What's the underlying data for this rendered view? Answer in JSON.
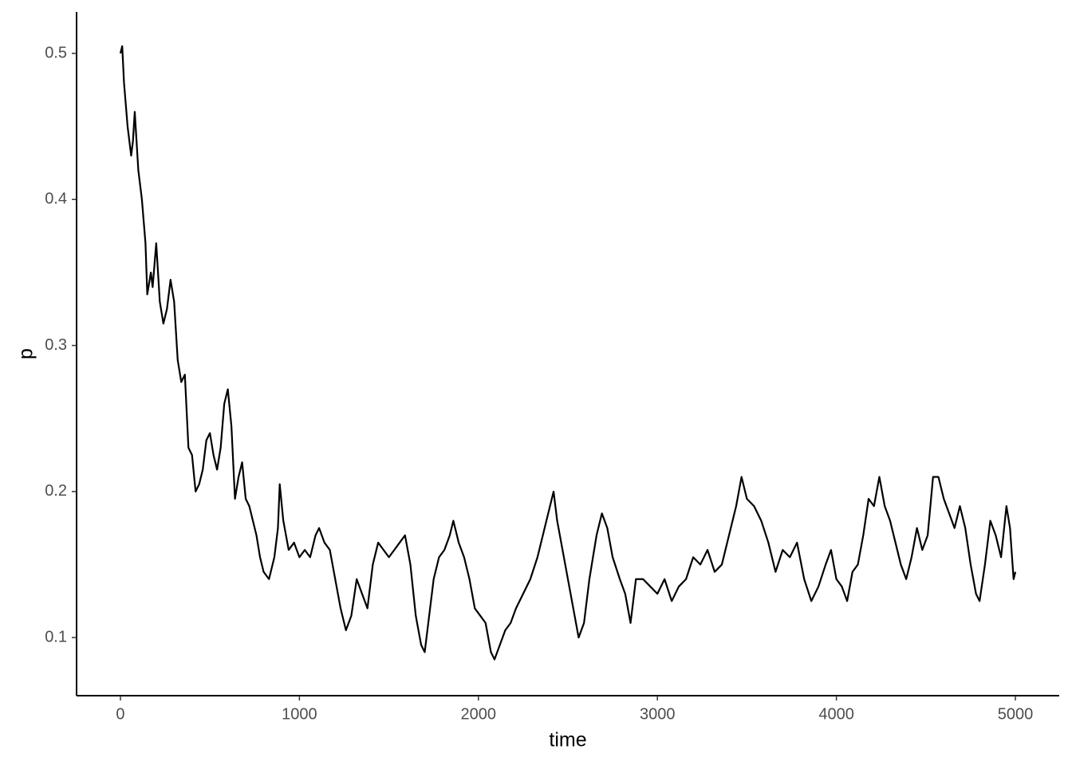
{
  "chart_data": {
    "type": "line",
    "x_label": "time",
    "y_label": "p",
    "x": [
      0,
      10,
      20,
      40,
      60,
      70,
      80,
      100,
      120,
      140,
      150,
      170,
      180,
      200,
      220,
      240,
      260,
      280,
      300,
      320,
      340,
      360,
      380,
      400,
      420,
      440,
      460,
      480,
      500,
      520,
      540,
      560,
      580,
      600,
      620,
      640,
      660,
      680,
      700,
      720,
      740,
      760,
      780,
      800,
      830,
      860,
      880,
      890,
      910,
      940,
      970,
      1000,
      1030,
      1060,
      1090,
      1110,
      1140,
      1170,
      1200,
      1230,
      1260,
      1290,
      1320,
      1350,
      1380,
      1410,
      1440,
      1470,
      1500,
      1530,
      1560,
      1590,
      1620,
      1650,
      1680,
      1700,
      1720,
      1750,
      1780,
      1810,
      1840,
      1860,
      1890,
      1920,
      1950,
      1980,
      2010,
      2040,
      2070,
      2090,
      2120,
      2150,
      2180,
      2210,
      2250,
      2290,
      2330,
      2360,
      2390,
      2420,
      2440,
      2470,
      2500,
      2530,
      2560,
      2590,
      2620,
      2660,
      2690,
      2720,
      2750,
      2790,
      2820,
      2850,
      2880,
      2920,
      2960,
      3000,
      3040,
      3080,
      3120,
      3160,
      3200,
      3240,
      3280,
      3320,
      3360,
      3400,
      3440,
      3470,
      3500,
      3540,
      3580,
      3620,
      3660,
      3700,
      3740,
      3780,
      3820,
      3860,
      3900,
      3940,
      3970,
      4000,
      4030,
      4060,
      4090,
      4120,
      4150,
      4180,
      4210,
      4240,
      4270,
      4300,
      4330,
      4360,
      4390,
      4420,
      4450,
      4480,
      4510,
      4540,
      4570,
      4600,
      4630,
      4660,
      4690,
      4720,
      4750,
      4780,
      4800,
      4830,
      4860,
      4890,
      4920,
      4950,
      4970,
      4990,
      5000
    ],
    "series": [
      {
        "color": "#000000",
        "values": [
          0.5,
          0.505,
          0.48,
          0.45,
          0.43,
          0.44,
          0.46,
          0.42,
          0.4,
          0.37,
          0.335,
          0.35,
          0.34,
          0.37,
          0.33,
          0.315,
          0.325,
          0.345,
          0.33,
          0.29,
          0.275,
          0.28,
          0.23,
          0.225,
          0.2,
          0.205,
          0.215,
          0.235,
          0.24,
          0.225,
          0.215,
          0.23,
          0.26,
          0.27,
          0.245,
          0.195,
          0.21,
          0.22,
          0.195,
          0.19,
          0.18,
          0.17,
          0.155,
          0.145,
          0.14,
          0.155,
          0.175,
          0.205,
          0.18,
          0.16,
          0.165,
          0.155,
          0.16,
          0.155,
          0.17,
          0.175,
          0.165,
          0.16,
          0.14,
          0.12,
          0.105,
          0.115,
          0.14,
          0.13,
          0.12,
          0.15,
          0.165,
          0.16,
          0.155,
          0.16,
          0.165,
          0.17,
          0.15,
          0.115,
          0.095,
          0.09,
          0.11,
          0.14,
          0.155,
          0.16,
          0.17,
          0.18,
          0.165,
          0.155,
          0.14,
          0.12,
          0.115,
          0.11,
          0.09,
          0.085,
          0.095,
          0.105,
          0.11,
          0.12,
          0.13,
          0.14,
          0.155,
          0.17,
          0.185,
          0.2,
          0.18,
          0.16,
          0.14,
          0.12,
          0.1,
          0.11,
          0.14,
          0.17,
          0.185,
          0.175,
          0.155,
          0.14,
          0.13,
          0.11,
          0.14,
          0.14,
          0.135,
          0.13,
          0.14,
          0.125,
          0.135,
          0.14,
          0.155,
          0.15,
          0.16,
          0.145,
          0.15,
          0.17,
          0.19,
          0.21,
          0.195,
          0.19,
          0.18,
          0.165,
          0.145,
          0.16,
          0.155,
          0.165,
          0.14,
          0.125,
          0.135,
          0.15,
          0.16,
          0.14,
          0.135,
          0.125,
          0.145,
          0.15,
          0.17,
          0.195,
          0.19,
          0.21,
          0.19,
          0.18,
          0.165,
          0.15,
          0.14,
          0.155,
          0.175,
          0.16,
          0.17,
          0.21,
          0.21,
          0.195,
          0.185,
          0.175,
          0.19,
          0.175,
          0.15,
          0.13,
          0.125,
          0.15,
          0.18,
          0.17,
          0.155,
          0.19,
          0.175,
          0.14,
          0.145
        ]
      }
    ],
    "xlim": [
      -245,
      5245
    ],
    "xticks": [
      0,
      1000,
      2000,
      3000,
      4000,
      5000
    ],
    "ylim": [
      0.0602,
      0.5284
    ],
    "yticks": [
      0.1,
      0.2,
      0.3,
      0.4,
      0.5
    ]
  }
}
